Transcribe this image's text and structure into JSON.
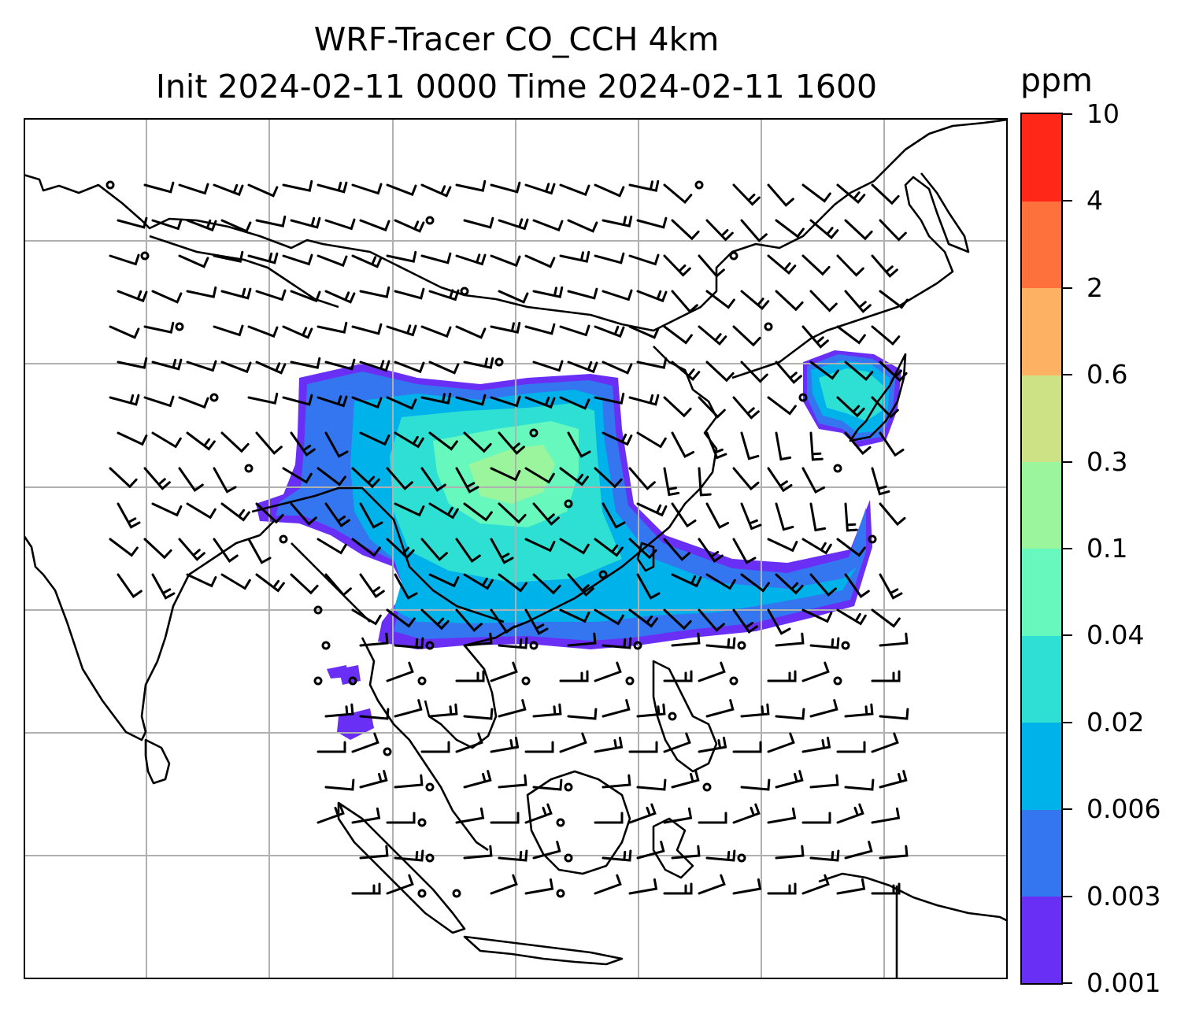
{
  "title": {
    "line1": "WRF-Tracer CO_CCH 4km",
    "line2": "Init 2024-02-11 0000 Time 2024-02-11 1600"
  },
  "colorbar": {
    "unit": "ppm",
    "levels": [
      "0.001",
      "0.003",
      "0.006",
      "0.02",
      "0.04",
      "0.1",
      "0.3",
      "0.6",
      "2",
      "4",
      "10"
    ],
    "colors": [
      "#6a2ff5",
      "#3476f0",
      "#00b2ea",
      "#2ee0d3",
      "#66f8bc",
      "#9af59c",
      "#cde285",
      "#fdb163",
      "#fe713d",
      "#ff2718"
    ]
  },
  "map": {
    "projection": "Lambert-style regional view, South/East Asia",
    "gridlines": true,
    "layers": [
      "coastlines",
      "country-borders",
      "tracer-concentration",
      "wind-barbs"
    ]
  }
}
